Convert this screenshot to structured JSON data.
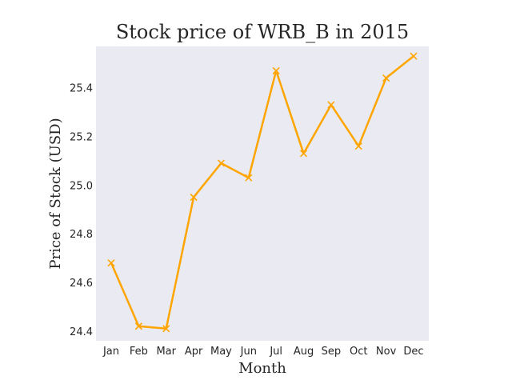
{
  "chart_data": {
    "type": "line",
    "title": "Stock price of WRB_B in 2015",
    "xlabel": "Month",
    "ylabel": "Price of Stock (USD)",
    "categories": [
      "Jan",
      "Feb",
      "Mar",
      "Apr",
      "May",
      "Jun",
      "Jul",
      "Aug",
      "Sep",
      "Oct",
      "Nov",
      "Dec"
    ],
    "series": [
      {
        "values": [
          24.68,
          24.42,
          24.41,
          24.95,
          25.09,
          25.03,
          25.47,
          25.13,
          25.33,
          25.16,
          25.44,
          25.53
        ],
        "color": "#FFA500",
        "marker": "x"
      }
    ],
    "yticks": [
      24.4,
      24.6,
      24.8,
      25.0,
      25.2,
      25.4
    ],
    "ytick_labels": [
      "24.4",
      "24.6",
      "24.8",
      "25.0",
      "25.2",
      "25.4"
    ],
    "ylim": [
      24.36,
      25.57
    ],
    "grid": false,
    "plot_background": "#EAEAF2"
  }
}
